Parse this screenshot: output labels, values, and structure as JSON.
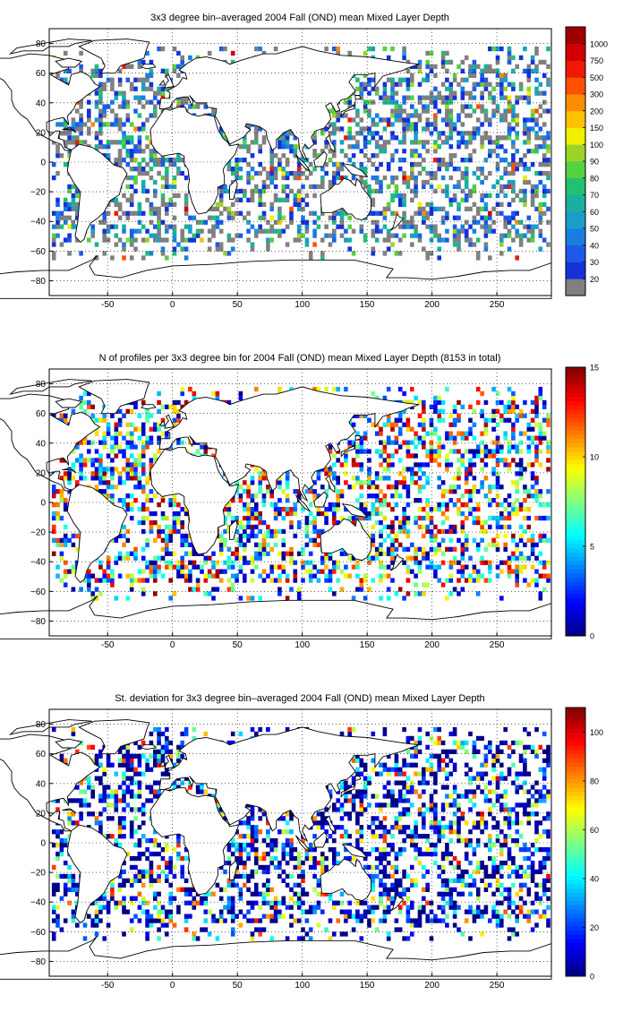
{
  "chart_data": [
    {
      "type": "heatmap",
      "title": "3x3 degree bin–averaged 2004 Fall (OND) mean Mixed Layer Depth",
      "x_ticks": [
        "-50",
        "0",
        "50",
        "100",
        "150",
        "200",
        "250"
      ],
      "y_ticks": [
        "80",
        "60",
        "40",
        "20",
        "0",
        "−20",
        "−40",
        "−60",
        "−80"
      ],
      "xlim": [
        -95,
        292
      ],
      "ylim": [
        -90,
        90
      ],
      "grid": true,
      "colorbar": {
        "scale": "categorical",
        "labels": [
          "20",
          "30",
          "40",
          "50",
          "60",
          "70",
          "80",
          "90",
          "100",
          "150",
          "200",
          "300",
          "500",
          "750",
          "1000"
        ],
        "colors": [
          "#808080",
          "#1432d8",
          "#1d5ae8",
          "#1a7ee0",
          "#1a9ec8",
          "#19b0a0",
          "#22c070",
          "#55d040",
          "#9ad428",
          "#f0f000",
          "#ffc000",
          "#ff8c00",
          "#ff5000",
          "#f01800",
          "#d00000",
          "#a00000"
        ]
      }
    },
    {
      "type": "heatmap",
      "title": "N of profiles per 3x3 degree bin for 2004 Fall (OND) mean Mixed Layer Depth  (8153 in total)",
      "x_ticks": [
        "-50",
        "0",
        "50",
        "100",
        "150",
        "200",
        "250"
      ],
      "y_ticks": [
        "80",
        "60",
        "40",
        "20",
        "0",
        "−20",
        "−40",
        "−60",
        "−80"
      ],
      "xlim": [
        -95,
        292
      ],
      "ylim": [
        -90,
        90
      ],
      "grid": true,
      "colorbar": {
        "scale": "jet",
        "range": [
          0,
          15
        ],
        "labels": [
          "15",
          "10",
          "5",
          "0"
        ]
      }
    },
    {
      "type": "heatmap",
      "title": "St. deviation for 3x3 degree bin–averaged 2004 Fall (OND) mean Mixed Layer Depth",
      "x_ticks": [
        "-50",
        "0",
        "50",
        "100",
        "150",
        "200",
        "250"
      ],
      "y_ticks": [
        "80",
        "60",
        "40",
        "20",
        "0",
        "−20",
        "−40",
        "−60",
        "−80"
      ],
      "xlim": [
        -95,
        292
      ],
      "ylim": [
        -90,
        90
      ],
      "grid": true,
      "colorbar": {
        "scale": "jet",
        "range": [
          0,
          110
        ],
        "labels": [
          "100",
          "80",
          "60",
          "40",
          "20",
          "0"
        ]
      }
    }
  ]
}
